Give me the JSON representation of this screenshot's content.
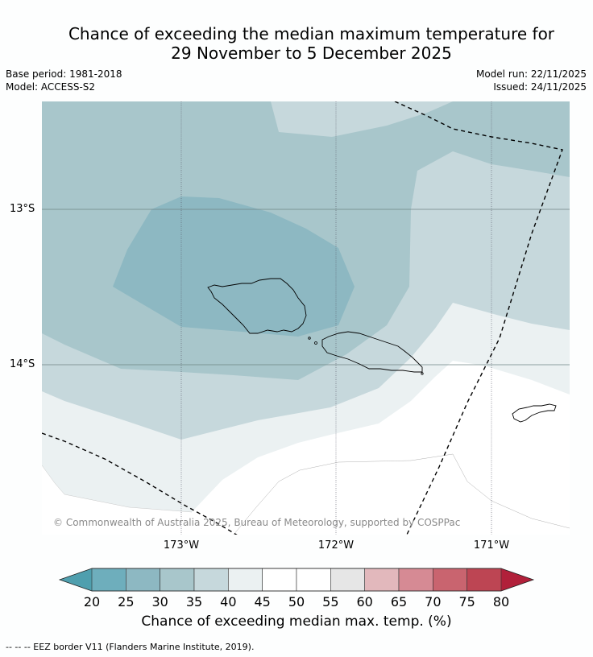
{
  "title_line1": "Chance of exceeding the median maximum temperature for",
  "title_line2": "29 November to 5 December 2025",
  "base_period": "Base period: 1981-2018",
  "model": "Model: ACCESS-S2",
  "model_run": "Model run: 22/11/2025",
  "issued": "Issued: 24/11/2025",
  "lat_labels": [
    "13°S",
    "14°S"
  ],
  "lon_labels": [
    "173°W",
    "172°W",
    "171°W"
  ],
  "copyright": "© Commonwealth of Australia 2025, Bureau of Meteorology, supported by COSPPac",
  "colorbar": {
    "ticks": [
      "20",
      "25",
      "30",
      "35",
      "40",
      "45",
      "50",
      "55",
      "60",
      "65",
      "70",
      "75",
      "80"
    ],
    "colors": [
      "#6eaebc",
      "#8db8c2",
      "#a8c6cb",
      "#c6d8dc",
      "#ebf1f2",
      "#ffffff",
      "#ffffff",
      "#e6e6e6",
      "#e2b8bc",
      "#d68a94",
      "#c9646f",
      "#bd4553"
    ],
    "low_arrow_color": "#4f9fae",
    "high_arrow_color": "#b1203a",
    "title": "Chance of exceeding median max. temp. (%)"
  },
  "footnote": "--  --  -- EEZ border V11 (Flanders Marine Institute, 2019).",
  "legend_colors": {
    "band_25_30": "#8db8c2",
    "band_30_35": "#a8c6cb",
    "band_35_40": "#c6d8dc",
    "band_40_45": "#ebf1f2",
    "band_45_55": "#ffffff"
  }
}
